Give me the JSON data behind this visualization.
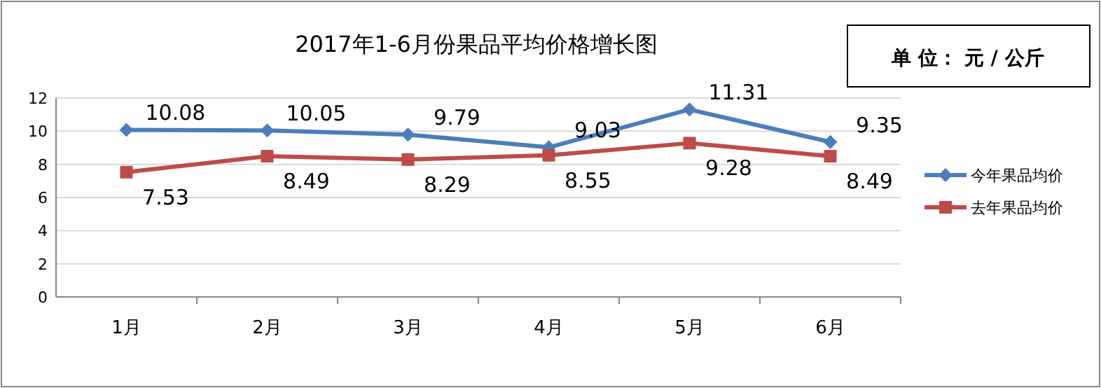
{
  "chart_data": {
    "type": "line",
    "title": "2017年1-6月份果品平均价格增长图",
    "annotations": [
      "单 位： 元 / 公斤"
    ],
    "categories": [
      "1月",
      "2月",
      "3月",
      "4月",
      "5月",
      "6月"
    ],
    "series": [
      {
        "name": "今年果品均价",
        "color": "#4a7ebb",
        "marker": "diamond",
        "values": [
          10.08,
          10.05,
          9.79,
          9.03,
          11.31,
          9.35
        ]
      },
      {
        "name": "去年果品均价",
        "color": "#be4b48",
        "marker": "square",
        "values": [
          7.53,
          8.49,
          8.29,
          8.55,
          9.28,
          8.49
        ]
      }
    ],
    "ylim": [
      0,
      12
    ],
    "yticks": [
      0,
      2,
      4,
      6,
      8,
      10,
      12
    ],
    "grid": "y",
    "legend": "right",
    "data_labels": true,
    "line_style": "solid"
  }
}
